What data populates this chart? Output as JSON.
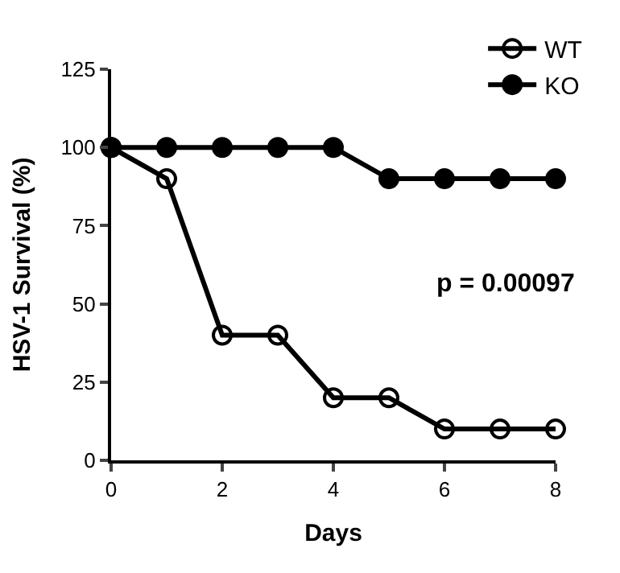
{
  "chart_data": {
    "type": "line",
    "xlabel": "Days",
    "ylabel": "HSV-1 Survival (%)",
    "x": [
      0,
      1,
      2,
      3,
      4,
      5,
      6,
      7,
      8
    ],
    "series": [
      {
        "name": "WT",
        "color": "#000000",
        "values": [
          100,
          90,
          40,
          40,
          20,
          20,
          10,
          10,
          10
        ]
      },
      {
        "name": "KO",
        "color": "#000000",
        "values": [
          100,
          100,
          100,
          100,
          100,
          90,
          90,
          90,
          90
        ]
      }
    ],
    "xlim": [
      0,
      8
    ],
    "xticks": [
      0,
      2,
      4,
      6,
      8
    ],
    "ylim": [
      0,
      125
    ],
    "yticks": [
      0,
      25,
      50,
      75,
      100,
      125
    ],
    "marker": "circle",
    "line_style": "solid",
    "legend": "top right",
    "annotations": [
      "p = 0.00097"
    ]
  }
}
